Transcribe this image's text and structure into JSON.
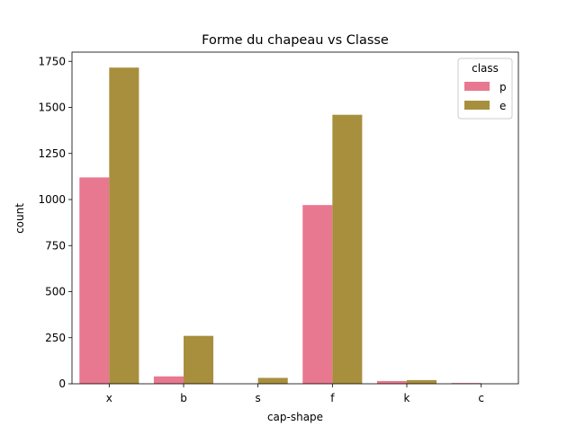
{
  "chart_data": {
    "type": "bar",
    "title": "Forme du chapeau vs Classe",
    "xlabel": "cap-shape",
    "ylabel": "count",
    "categories": [
      "x",
      "b",
      "s",
      "f",
      "k",
      "c"
    ],
    "series": [
      {
        "name": "p",
        "color": "#e8788f",
        "values": [
          1120,
          40,
          0,
          970,
          15,
          4
        ]
      },
      {
        "name": "e",
        "color": "#a88f3e",
        "values": [
          1716,
          260,
          32,
          1460,
          20,
          0
        ]
      }
    ],
    "ylim": [
      0,
      1800
    ],
    "yticks": [
      0,
      250,
      500,
      750,
      1000,
      1250,
      1500,
      1750
    ],
    "grid": false,
    "legend": {
      "title": "class",
      "position": "top-right"
    }
  }
}
